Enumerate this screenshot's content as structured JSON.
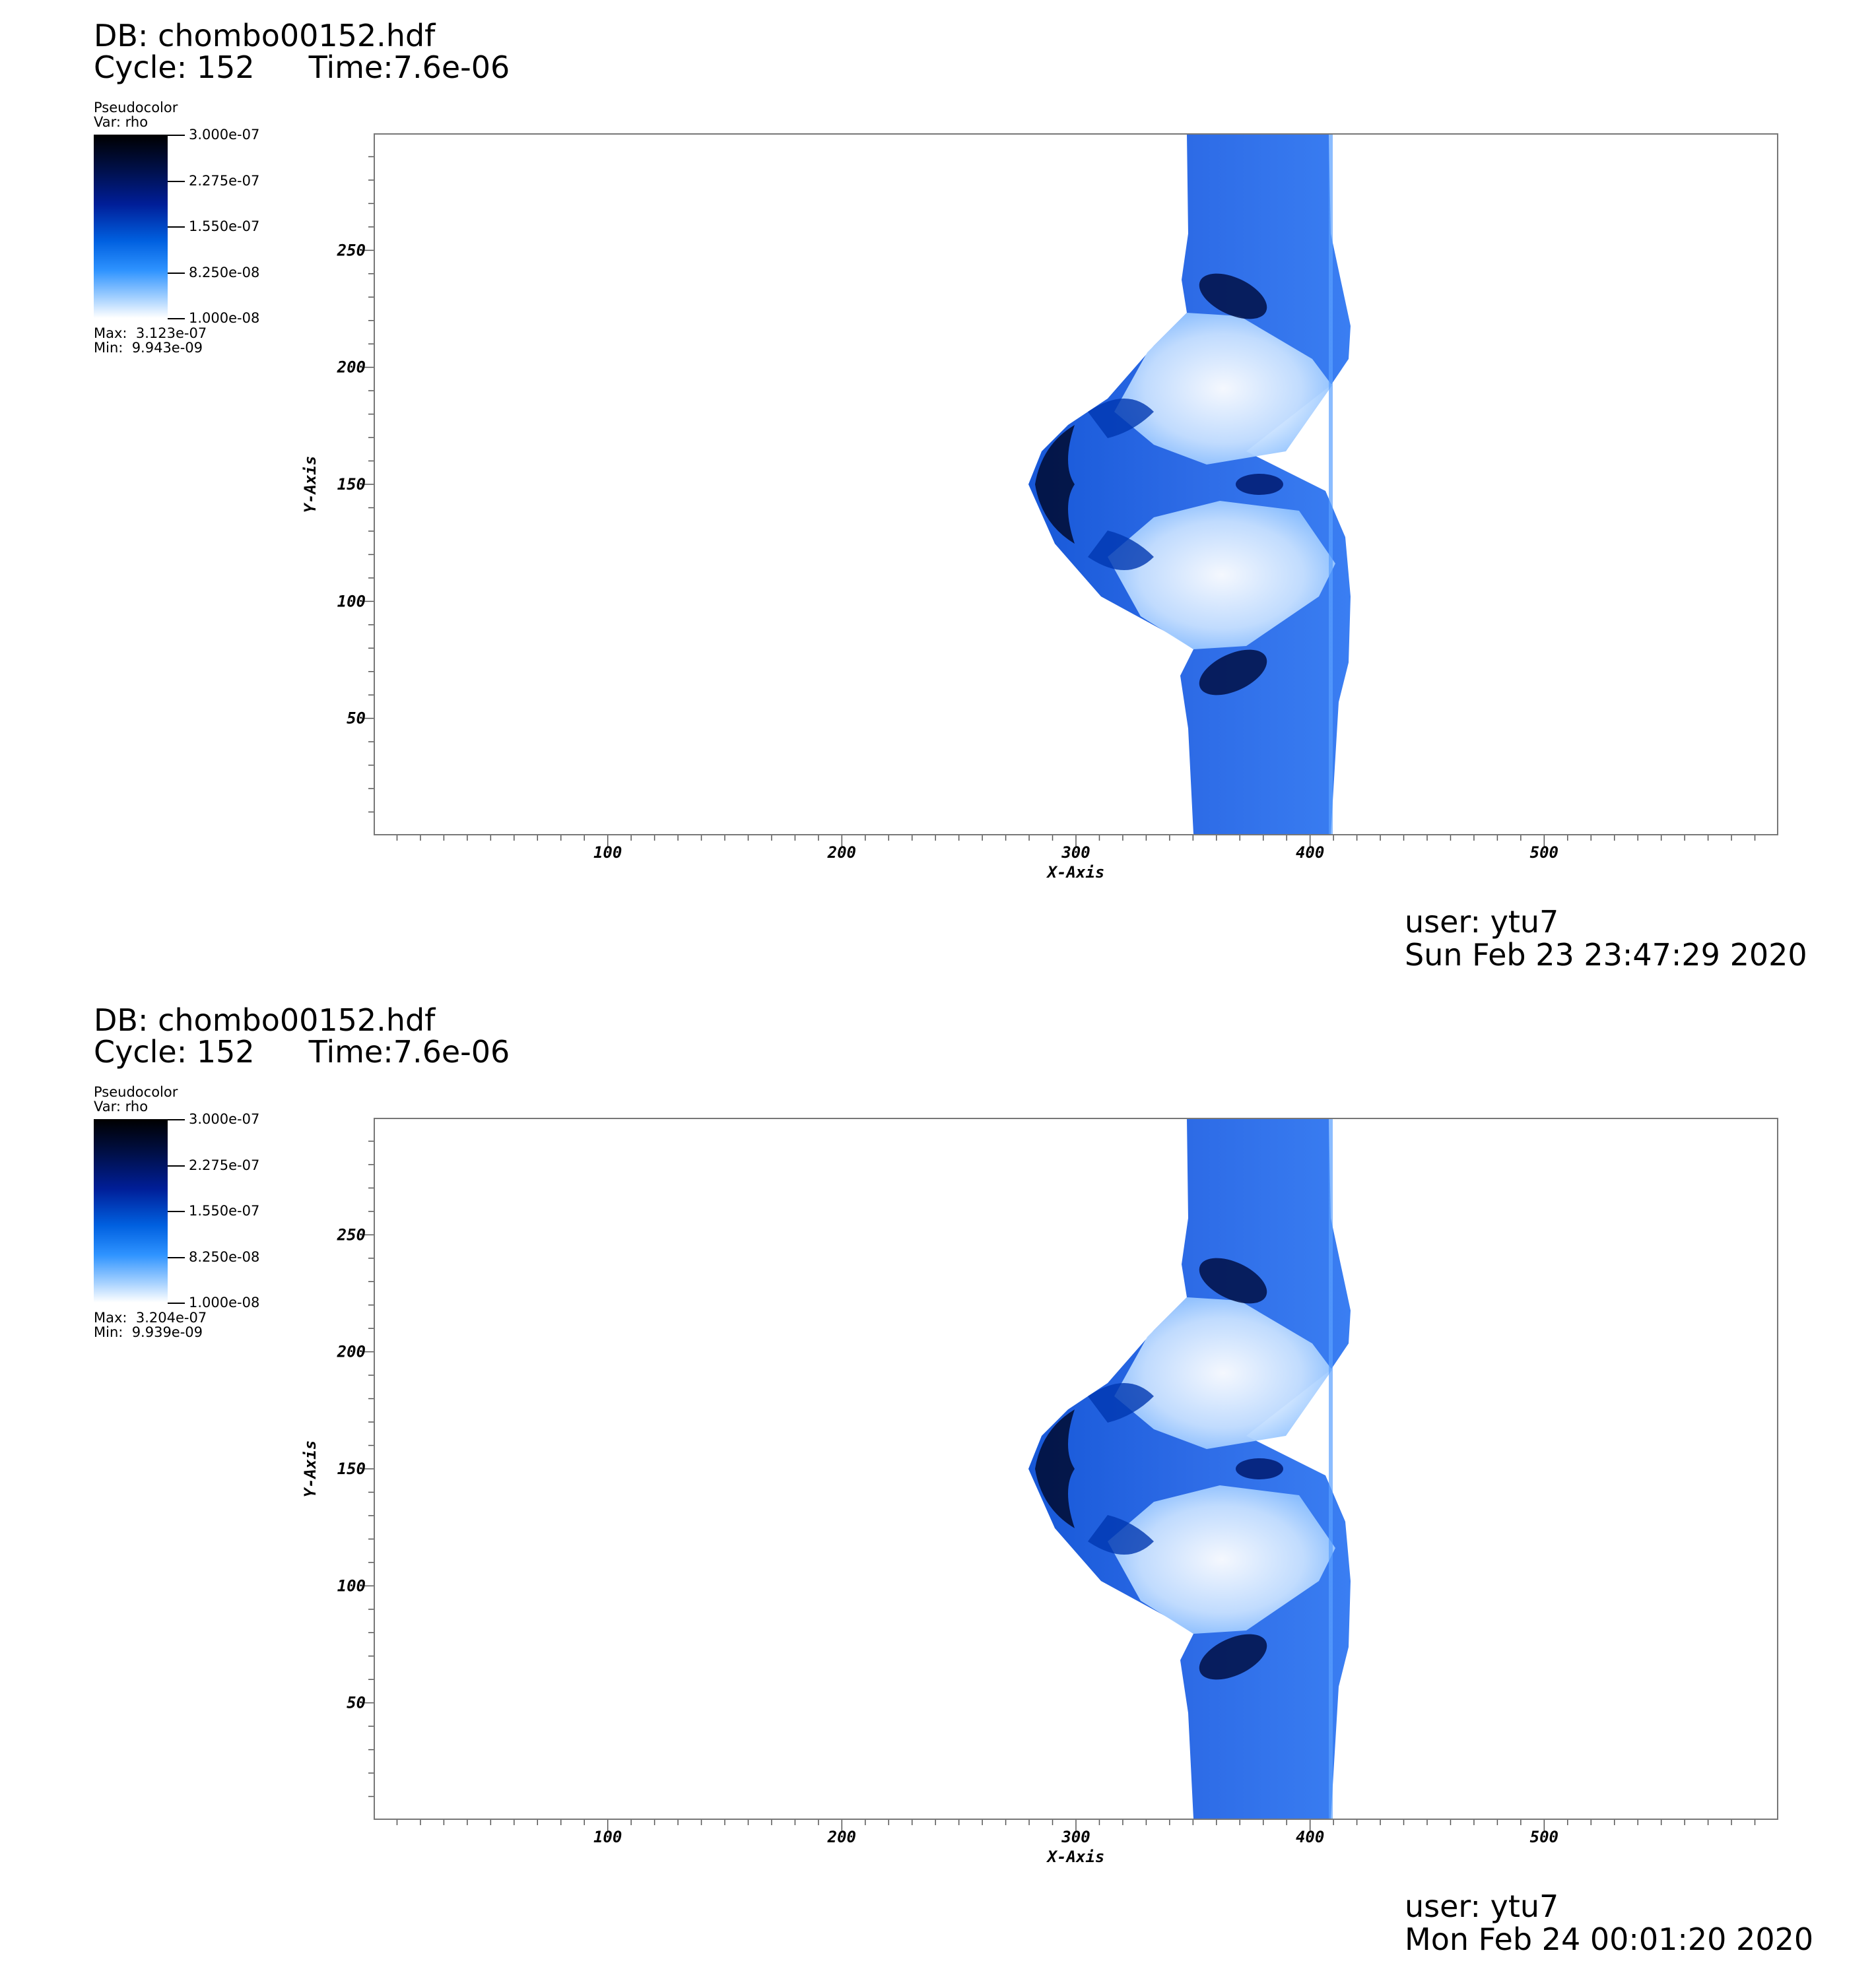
{
  "panels": [
    {
      "db": "DB: chombo00152.hdf",
      "cycle": "Cycle: 152",
      "time": "Time:7.6e-06",
      "legend": {
        "plot_type": "Pseudocolor",
        "var": "Var: rho",
        "ticks": [
          "3.000e-07",
          "2.275e-07",
          "1.550e-07",
          "8.250e-08",
          "1.000e-08"
        ],
        "max": "Max:  3.123e-07",
        "min": "Min:  9.943e-09"
      },
      "user": "user: ytu7",
      "date": "Sun Feb 23 23:47:29 2020"
    },
    {
      "db": "DB: chombo00152.hdf",
      "cycle": "Cycle: 152",
      "time": "Time:7.6e-06",
      "legend": {
        "plot_type": "Pseudocolor",
        "var": "Var: rho",
        "ticks": [
          "3.000e-07",
          "2.275e-07",
          "1.550e-07",
          "8.250e-08",
          "1.000e-08"
        ],
        "max": "Max:  3.204e-07",
        "min": "Min:  9.939e-09"
      },
      "user": "user: ytu7",
      "date": "Mon Feb 24 00:01:20 2020"
    }
  ],
  "chart_data": [
    {
      "type": "heatmap",
      "variable": "rho",
      "xlabel": "X-Axis",
      "ylabel": "Y-Axis",
      "xlim": [
        0,
        600
      ],
      "ylim": [
        0,
        300
      ],
      "xticks": [
        100,
        200,
        300,
        400,
        500
      ],
      "yticks": [
        50,
        100,
        150,
        200,
        250
      ],
      "color_range": [
        1e-08,
        3e-07
      ],
      "colormap_colors": [
        "#000000",
        "#001e98",
        "#0060e0",
        "#2e93ff",
        "#ffffff"
      ]
    },
    {
      "type": "heatmap",
      "variable": "rho",
      "xlabel": "X-Axis",
      "ylabel": "Y-Axis",
      "xlim": [
        0,
        600
      ],
      "ylim": [
        0,
        300
      ],
      "xticks": [
        100,
        200,
        300,
        400,
        500
      ],
      "yticks": [
        50,
        100,
        150,
        200,
        250
      ],
      "color_range": [
        1e-08,
        3e-07
      ],
      "colormap_colors": [
        "#000000",
        "#001e98",
        "#0060e0",
        "#2e93ff",
        "#ffffff"
      ]
    }
  ]
}
